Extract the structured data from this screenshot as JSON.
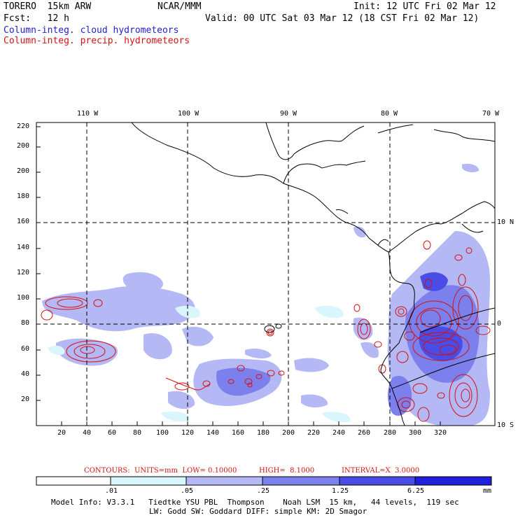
{
  "header": {
    "model": "TORERO  15km ARW",
    "org": "NCAR/MMM",
    "init": "Init: 12 UTC Fri 02 Mar 12",
    "fcst": "Fcst:   12 h",
    "valid": "Valid: 00 UTC Sat 03 Mar 12 (18 CST Fri 02 Mar 12)"
  },
  "legend": {
    "cloud": "Column-integ. cloud hydrometeors",
    "precip": "Column-integ. precip. hydrometeors",
    "cloud_color": "#1f1fd0",
    "precip_color": "#d41111"
  },
  "axes": {
    "x_ticks": [
      "20",
      "40",
      "60",
      "80",
      "100",
      "120",
      "140",
      "160",
      "180",
      "200",
      "220",
      "240",
      "260",
      "280",
      "300",
      "320"
    ],
    "y_ticks": [
      "20",
      "40",
      "60",
      "80",
      "100",
      "120",
      "140",
      "160",
      "180",
      "200",
      "220"
    ],
    "lon_labels": [
      "110 W",
      "100 W",
      "90 W",
      "80 W",
      "70 W"
    ],
    "lat_labels": [
      "10 N",
      "0",
      "10 S"
    ]
  },
  "contour_info": {
    "contours": "CONTOURS:  UNITS=mm  LOW= 0.10000",
    "high": "HIGH=  8.1000",
    "interval": "INTERVAL=X  3.0000"
  },
  "colorbar": {
    "ticks": [
      ".01",
      ".05",
      ".25",
      "1.25",
      "6.25"
    ],
    "unit": "mm",
    "colors": [
      "#ffffff",
      "#d8f6fb",
      "#b4b8f4",
      "#7c80ec",
      "#4a4ce6",
      "#2020dc"
    ]
  },
  "footer": {
    "line1": "Model Info: V3.3.1   Tiedtke YSU PBL  Thompson    Noah LSM  15 km,   44 levels,  119 sec",
    "line2": "LW: Godd SW: Goddard DIFF: simple KM: 2D Smagor"
  }
}
